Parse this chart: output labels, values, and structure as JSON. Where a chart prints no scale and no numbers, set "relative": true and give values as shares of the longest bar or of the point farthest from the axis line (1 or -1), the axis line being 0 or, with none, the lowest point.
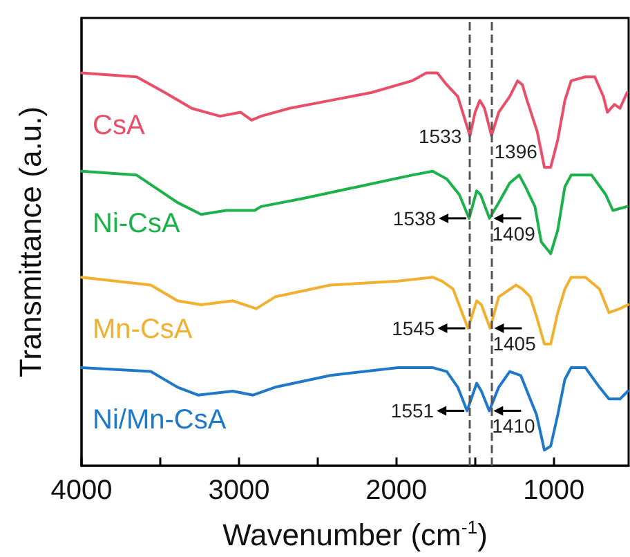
{
  "chart_data": {
    "type": "line",
    "relative": true,
    "xlabel": "Wavenumber (cm$^{-1}$)",
    "ylabel": "Transmittance (a.u.)",
    "xlim": [
      4000,
      525
    ],
    "xticks": [
      4000,
      {
        "value": 3500,
        "label": null
      },
      3000,
      {
        "value": 2500,
        "label": null
      },
      2000,
      {
        "value": 1500,
        "label": null
      },
      1000
    ],
    "marker": "none",
    "line_style": "solid",
    "ref_lines": [
      {
        "axis": "x",
        "value": 1533,
        "color": "#555555",
        "line_style": "dashed"
      },
      {
        "axis": "x",
        "value": 1396,
        "color": "#555555",
        "line_style": "dashed"
      }
    ],
    "annotations": [
      {
        "text": "1533",
        "x": 1533,
        "y": 0.84
      },
      {
        "text": "1396",
        "x": 1396,
        "y": 0.84
      },
      {
        "text": "1538",
        "x": 1538,
        "y": 0.63
      },
      {
        "text": "1409",
        "x": 1409,
        "y": 0.63
      },
      {
        "text": "1545",
        "x": 1545,
        "y": 0.35
      },
      {
        "text": "1405",
        "x": 1405,
        "y": 0.35
      },
      {
        "text": "1551",
        "x": 1551,
        "y": 0.14
      },
      {
        "text": "1410",
        "x": 1410,
        "y": 0.14
      }
    ],
    "series": [
      {
        "name": "CsA",
        "color": "#e8506a",
        "x": [
          4000,
          3650,
          3470,
          3300,
          3120,
          2990,
          2920,
          2860,
          2680,
          2420,
          2160,
          1900,
          1810,
          1740,
          1680,
          1610,
          1533,
          1500,
          1470,
          1440,
          1396,
          1350,
          1280,
          1230,
          1200,
          1170,
          1105,
          1060,
          1020,
          975,
          930,
          890,
          800,
          740,
          685,
          660,
          615,
          580,
          535
        ],
        "values": [
          1.0,
          0.99,
          0.95,
          0.91,
          0.89,
          0.9,
          0.88,
          0.89,
          0.91,
          0.93,
          0.95,
          0.98,
          1.0,
          1.0,
          0.97,
          0.94,
          0.84,
          0.9,
          0.93,
          0.91,
          0.84,
          0.9,
          0.94,
          0.98,
          0.97,
          0.93,
          0.85,
          0.76,
          0.76,
          0.83,
          0.93,
          0.98,
          0.99,
          0.99,
          0.94,
          0.9,
          0.92,
          0.91,
          0.95
        ]
      },
      {
        "name": "Ni-CsA",
        "color": "#1db14b",
        "x": [
          4000,
          3650,
          3390,
          3240,
          3080,
          2900,
          2860,
          2600,
          2250,
          1900,
          1770,
          1680,
          1600,
          1538,
          1490,
          1465,
          1409,
          1350,
          1280,
          1220,
          1180,
          1120,
          1080,
          1020,
          975,
          930,
          890,
          760,
          670,
          625,
          535
        ],
        "values": [
          0.75,
          0.74,
          0.67,
          0.64,
          0.65,
          0.65,
          0.66,
          0.68,
          0.71,
          0.74,
          0.75,
          0.73,
          0.69,
          0.63,
          0.7,
          0.69,
          0.63,
          0.67,
          0.72,
          0.74,
          0.71,
          0.66,
          0.57,
          0.54,
          0.6,
          0.71,
          0.74,
          0.74,
          0.69,
          0.65,
          0.66
        ]
      },
      {
        "name": "Mn-CsA",
        "color": "#f0b030",
        "x": [
          4000,
          3560,
          3390,
          3240,
          3040,
          2890,
          2770,
          2420,
          1990,
          1770,
          1710,
          1640,
          1545,
          1490,
          1460,
          1405,
          1350,
          1240,
          1200,
          1150,
          1110,
          1060,
          1020,
          975,
          930,
          890,
          800,
          710,
          650,
          580,
          530
        ],
        "values": [
          0.48,
          0.46,
          0.42,
          0.41,
          0.42,
          0.4,
          0.43,
          0.46,
          0.47,
          0.48,
          0.47,
          0.45,
          0.35,
          0.42,
          0.41,
          0.35,
          0.43,
          0.46,
          0.45,
          0.43,
          0.38,
          0.31,
          0.31,
          0.39,
          0.45,
          0.48,
          0.48,
          0.45,
          0.39,
          0.4,
          0.41
        ]
      },
      {
        "name": "Ni/Mn-CsA",
        "color": "#1f78c8",
        "x": [
          4000,
          3560,
          3390,
          3260,
          3040,
          2910,
          2770,
          2420,
          1990,
          1770,
          1680,
          1610,
          1551,
          1490,
          1460,
          1410,
          1350,
          1280,
          1210,
          1160,
          1110,
          1060,
          1020,
          975,
          930,
          890,
          800,
          710,
          650,
          580,
          530
        ],
        "values": [
          0.25,
          0.24,
          0.2,
          0.18,
          0.19,
          0.18,
          0.2,
          0.23,
          0.25,
          0.25,
          0.24,
          0.2,
          0.14,
          0.21,
          0.19,
          0.14,
          0.2,
          0.24,
          0.23,
          0.18,
          0.13,
          0.04,
          0.05,
          0.13,
          0.22,
          0.25,
          0.25,
          0.2,
          0.17,
          0.17,
          0.19
        ]
      }
    ]
  }
}
